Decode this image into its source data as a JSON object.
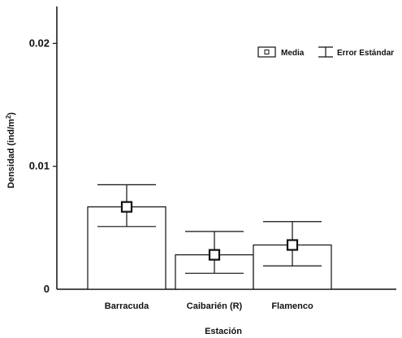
{
  "chart_data": {
    "type": "bar",
    "categories": [
      "Barracuda",
      "Caibarién (R)",
      "Flamenco"
    ],
    "series": [
      {
        "values": [
          0.0067,
          0.0028,
          0.0036
        ],
        "mean": [
          0.0067,
          0.0028,
          0.0036
        ],
        "error_upper": [
          0.0085,
          0.0047,
          0.0055
        ],
        "error_lower": [
          0.0051,
          0.0013,
          0.0019
        ]
      }
    ],
    "xlabel": "Estación",
    "ylabel_main": "Densidad (ind/m",
    "ylabel_sup": "2",
    "ylabel_close": ")",
    "ylim": [
      0,
      0.023
    ],
    "yticks": [
      {
        "value": 0,
        "label": "0"
      },
      {
        "value": 0.01,
        "label": "0.01"
      },
      {
        "value": 0.02,
        "label": "0.02"
      }
    ],
    "legend": {
      "position": "top-right",
      "items": [
        {
          "symbol": "square-marker",
          "label": "Media"
        },
        {
          "symbol": "error-bar",
          "label": "Error Estándar"
        }
      ]
    },
    "grid": false,
    "colors": {
      "bar_fill": "#ffffff",
      "bar_stroke": "#111111",
      "marker_fill": "#ffffff",
      "axis": "#111111"
    }
  }
}
